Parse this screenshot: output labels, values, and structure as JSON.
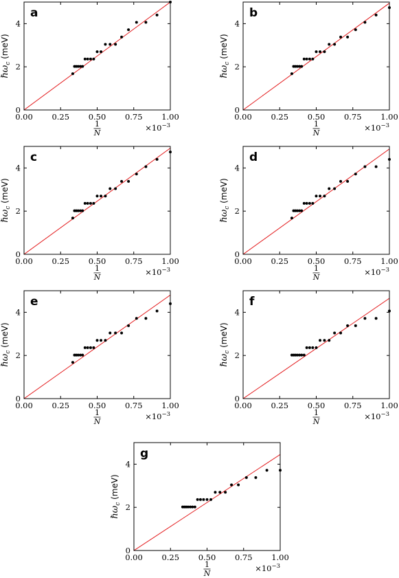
{
  "chart_data": [
    {
      "panel": "a",
      "type": "scatter",
      "xlabel_num": "1",
      "xlabel_den": "N",
      "x_scale_text": "×10",
      "x_scale_exp": "−3",
      "ylabel_main": "ℏω",
      "ylabel_sub": "c",
      "ylabel_unit": " (meV)",
      "xlim": [
        0,
        1.0
      ],
      "ylim": [
        0,
        5.0
      ],
      "xticks": [
        0,
        0.25,
        0.5,
        0.75,
        1.0
      ],
      "xtick_labels": [
        "0.00",
        "0.25",
        "0.50",
        "0.75",
        "1.00"
      ],
      "yticks": [
        0,
        2,
        4
      ],
      "ytick_labels": [
        "0",
        "2",
        "4"
      ],
      "fit_line": {
        "x": [
          0,
          1.0
        ],
        "y": [
          0,
          5.0
        ]
      },
      "points": {
        "x": [
          0.333,
          0.345,
          0.357,
          0.37,
          0.385,
          0.4,
          0.417,
          0.435,
          0.455,
          0.476,
          0.5,
          0.526,
          0.556,
          0.588,
          0.625,
          0.667,
          0.714,
          0.769,
          0.833,
          0.909,
          1.0
        ],
        "y": [
          1.68,
          2.02,
          2.02,
          2.02,
          2.02,
          2.02,
          2.36,
          2.36,
          2.36,
          2.36,
          2.7,
          2.7,
          3.04,
          3.04,
          3.04,
          3.38,
          3.72,
          4.06,
          4.06,
          4.4,
          5.0
        ]
      }
    },
    {
      "panel": "b",
      "type": "scatter",
      "xlabel_num": "1",
      "xlabel_den": "N",
      "x_scale_text": "×10",
      "x_scale_exp": "−3",
      "ylabel_main": "ℏω",
      "ylabel_sub": "c",
      "ylabel_unit": " (meV)",
      "xlim": [
        0,
        1.0
      ],
      "ylim": [
        0,
        5.0
      ],
      "xticks": [
        0,
        0.25,
        0.5,
        0.75,
        1.0
      ],
      "xtick_labels": [
        "0.00",
        "0.25",
        "0.50",
        "0.75",
        "1.00"
      ],
      "yticks": [
        0,
        2,
        4
      ],
      "ytick_labels": [
        "0",
        "2",
        "4"
      ],
      "fit_line": {
        "x": [
          0,
          1.0
        ],
        "y": [
          0,
          4.95
        ]
      },
      "points": {
        "x": [
          0.333,
          0.345,
          0.357,
          0.37,
          0.385,
          0.4,
          0.417,
          0.435,
          0.455,
          0.476,
          0.5,
          0.526,
          0.556,
          0.588,
          0.625,
          0.667,
          0.714,
          0.769,
          0.833,
          0.909,
          1.0
        ],
        "y": [
          1.68,
          2.02,
          2.02,
          2.02,
          2.02,
          2.02,
          2.36,
          2.36,
          2.36,
          2.36,
          2.7,
          2.7,
          2.7,
          3.04,
          3.04,
          3.38,
          3.38,
          3.72,
          4.06,
          4.4,
          4.74
        ]
      }
    },
    {
      "panel": "c",
      "type": "scatter",
      "xlabel_num": "1",
      "xlabel_den": "N",
      "x_scale_text": "×10",
      "x_scale_exp": "−3",
      "ylabel_main": "ℏω",
      "ylabel_sub": "c",
      "ylabel_unit": " (meV)",
      "xlim": [
        0,
        1.0
      ],
      "ylim": [
        0,
        5.0
      ],
      "xticks": [
        0,
        0.25,
        0.5,
        0.75,
        1.0
      ],
      "xtick_labels": [
        "0.00",
        "0.25",
        "0.50",
        "0.75",
        "1.00"
      ],
      "yticks": [
        0,
        2,
        4
      ],
      "ytick_labels": [
        "0",
        "2",
        "4"
      ],
      "fit_line": {
        "x": [
          0,
          1.0
        ],
        "y": [
          0,
          4.92
        ]
      },
      "points": {
        "x": [
          0.333,
          0.345,
          0.357,
          0.37,
          0.385,
          0.4,
          0.417,
          0.435,
          0.455,
          0.476,
          0.5,
          0.526,
          0.556,
          0.588,
          0.625,
          0.667,
          0.714,
          0.769,
          0.833,
          0.909,
          1.0
        ],
        "y": [
          1.68,
          2.02,
          2.02,
          2.02,
          2.02,
          2.02,
          2.36,
          2.36,
          2.36,
          2.36,
          2.7,
          2.7,
          2.7,
          3.04,
          3.04,
          3.38,
          3.38,
          3.72,
          4.06,
          4.4,
          4.74
        ]
      }
    },
    {
      "panel": "d",
      "type": "scatter",
      "xlabel_num": "1",
      "xlabel_den": "N",
      "x_scale_text": "×10",
      "x_scale_exp": "−3",
      "ylabel_main": "ℏω",
      "ylabel_sub": "c",
      "ylabel_unit": " (meV)",
      "xlim": [
        0,
        1.0
      ],
      "ylim": [
        0,
        5.0
      ],
      "xticks": [
        0,
        0.25,
        0.5,
        0.75,
        1.0
      ],
      "xtick_labels": [
        "0.00",
        "0.25",
        "0.50",
        "0.75",
        "1.00"
      ],
      "yticks": [
        0,
        2,
        4
      ],
      "ytick_labels": [
        "0",
        "2",
        "4"
      ],
      "fit_line": {
        "x": [
          0,
          1.0
        ],
        "y": [
          0,
          4.88
        ]
      },
      "points": {
        "x": [
          0.333,
          0.345,
          0.357,
          0.37,
          0.385,
          0.4,
          0.417,
          0.435,
          0.455,
          0.476,
          0.5,
          0.526,
          0.556,
          0.588,
          0.625,
          0.667,
          0.714,
          0.769,
          0.833,
          0.909,
          1.0
        ],
        "y": [
          1.68,
          2.02,
          2.02,
          2.02,
          2.02,
          2.02,
          2.36,
          2.36,
          2.36,
          2.36,
          2.7,
          2.7,
          2.7,
          3.04,
          3.04,
          3.38,
          3.38,
          3.72,
          4.06,
          4.06,
          4.4
        ]
      }
    },
    {
      "panel": "e",
      "type": "scatter",
      "xlabel_num": "1",
      "xlabel_den": "N",
      "x_scale_text": "×10",
      "x_scale_exp": "−3",
      "ylabel_main": "ℏω",
      "ylabel_sub": "c",
      "ylabel_unit": " (meV)",
      "xlim": [
        0,
        1.0
      ],
      "ylim": [
        0,
        5.0
      ],
      "xticks": [
        0,
        0.25,
        0.5,
        0.75,
        1.0
      ],
      "xtick_labels": [
        "0.00",
        "0.25",
        "0.50",
        "0.75",
        "1.00"
      ],
      "yticks": [
        0,
        2,
        4
      ],
      "ytick_labels": [
        "0",
        "2",
        "4"
      ],
      "fit_line": {
        "x": [
          0,
          1.0
        ],
        "y": [
          0,
          4.8
        ]
      },
      "points": {
        "x": [
          0.333,
          0.345,
          0.357,
          0.37,
          0.385,
          0.4,
          0.417,
          0.435,
          0.455,
          0.476,
          0.5,
          0.526,
          0.556,
          0.588,
          0.625,
          0.667,
          0.714,
          0.769,
          0.833,
          0.909,
          1.0
        ],
        "y": [
          1.68,
          2.02,
          2.02,
          2.02,
          2.02,
          2.02,
          2.36,
          2.36,
          2.36,
          2.36,
          2.7,
          2.7,
          2.7,
          3.04,
          3.04,
          3.04,
          3.38,
          3.72,
          3.72,
          4.06,
          4.4
        ]
      }
    },
    {
      "panel": "f",
      "type": "scatter",
      "xlabel_num": "1",
      "xlabel_den": "N",
      "x_scale_text": "×10",
      "x_scale_exp": "−3",
      "ylabel_main": "ℏω",
      "ylabel_sub": "c",
      "ylabel_unit": " (meV)",
      "xlim": [
        0,
        1.0
      ],
      "ylim": [
        0,
        5.0
      ],
      "xticks": [
        0,
        0.25,
        0.5,
        0.75,
        1.0
      ],
      "xtick_labels": [
        "0.00",
        "0.25",
        "0.50",
        "0.75",
        "1.00"
      ],
      "yticks": [
        0,
        2,
        4
      ],
      "ytick_labels": [
        "0",
        "2",
        "4"
      ],
      "fit_line": {
        "x": [
          0,
          1.0
        ],
        "y": [
          0,
          4.65
        ]
      },
      "points": {
        "x": [
          0.333,
          0.345,
          0.357,
          0.37,
          0.385,
          0.4,
          0.417,
          0.435,
          0.455,
          0.476,
          0.5,
          0.526,
          0.556,
          0.588,
          0.625,
          0.667,
          0.714,
          0.769,
          0.833,
          0.909,
          1.0
        ],
        "y": [
          2.02,
          2.02,
          2.02,
          2.02,
          2.02,
          2.02,
          2.02,
          2.36,
          2.36,
          2.36,
          2.36,
          2.7,
          2.7,
          2.7,
          3.04,
          3.04,
          3.38,
          3.38,
          3.72,
          3.72,
          4.06
        ]
      }
    },
    {
      "panel": "g",
      "type": "scatter",
      "xlabel_num": "1",
      "xlabel_den": "N",
      "x_scale_text": "×10",
      "x_scale_exp": "−3",
      "ylabel_main": "ℏω",
      "ylabel_sub": "c",
      "ylabel_unit": " (meV)",
      "xlim": [
        0,
        1.0
      ],
      "ylim": [
        0,
        5.0
      ],
      "xticks": [
        0,
        0.25,
        0.5,
        0.75,
        1.0
      ],
      "xtick_labels": [
        "0.00",
        "0.25",
        "0.50",
        "0.75",
        "1.00"
      ],
      "yticks": [
        0,
        2,
        4
      ],
      "ytick_labels": [
        "0",
        "2",
        "4"
      ],
      "fit_line": {
        "x": [
          0,
          1.0
        ],
        "y": [
          0,
          4.45
        ]
      },
      "points": {
        "x": [
          0.333,
          0.345,
          0.357,
          0.37,
          0.385,
          0.4,
          0.417,
          0.435,
          0.455,
          0.476,
          0.5,
          0.526,
          0.556,
          0.588,
          0.625,
          0.667,
          0.714,
          0.769,
          0.833,
          0.909,
          1.0
        ],
        "y": [
          2.02,
          2.02,
          2.02,
          2.02,
          2.02,
          2.02,
          2.02,
          2.36,
          2.36,
          2.36,
          2.36,
          2.36,
          2.7,
          2.7,
          2.7,
          3.04,
          3.04,
          3.38,
          3.38,
          3.72,
          3.72
        ]
      }
    }
  ]
}
